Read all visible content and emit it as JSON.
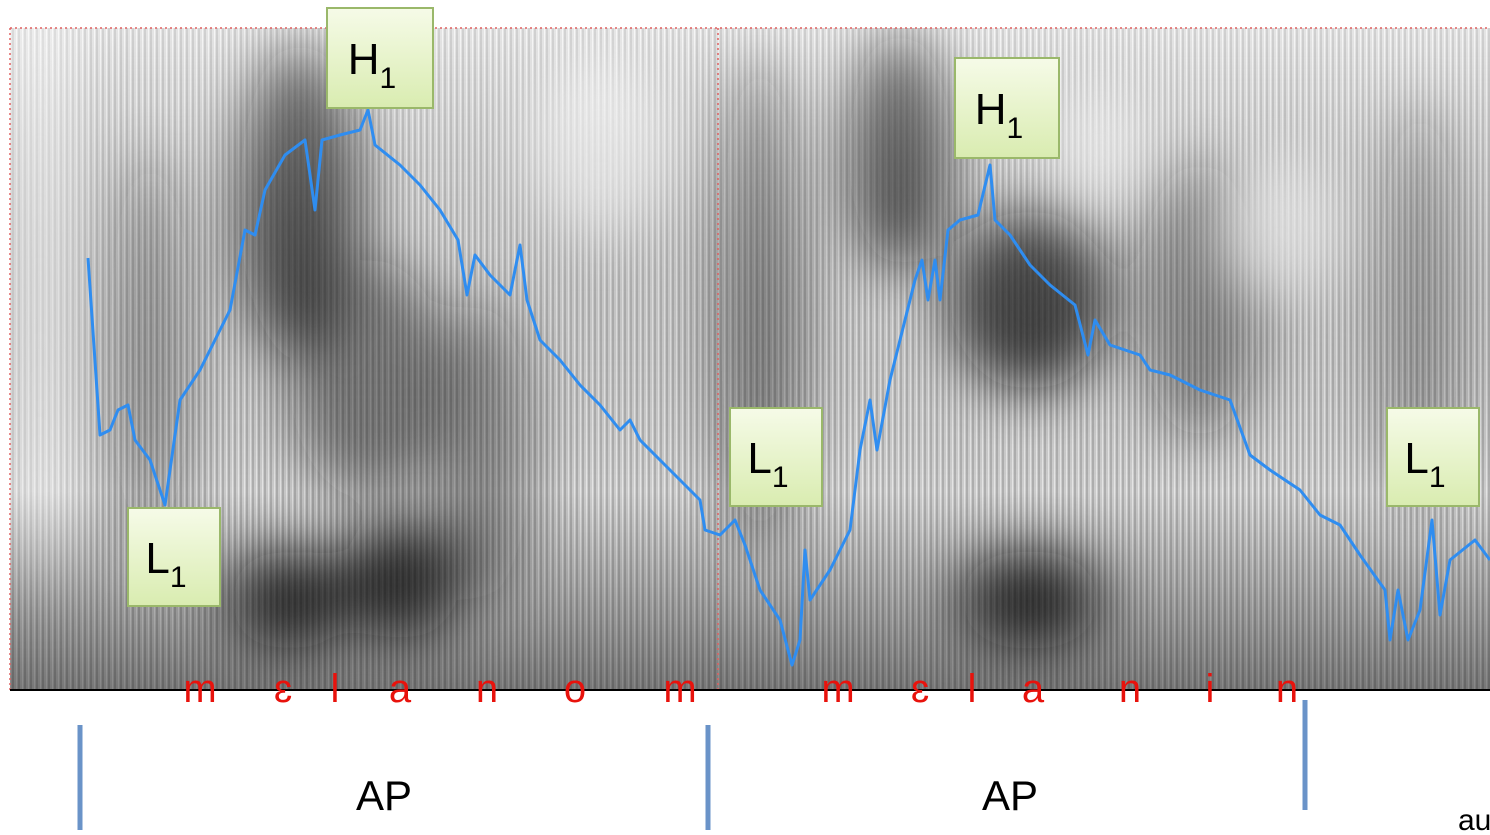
{
  "tone_labels": [
    {
      "base": "H",
      "sub": "1"
    },
    {
      "base": "H",
      "sub": "1"
    },
    {
      "base": "L",
      "sub": "1"
    },
    {
      "base": "L",
      "sub": "1"
    },
    {
      "base": "L",
      "sub": "1"
    }
  ],
  "phonemes": [
    [
      "m",
      "ɛ",
      "l",
      "a",
      "n",
      "o",
      "m"
    ],
    [
      "m",
      "ɛ",
      "l",
      "a",
      "n",
      "i",
      "n"
    ]
  ],
  "phrases": [
    "AP",
    "AP"
  ],
  "corner_text": "au"
}
